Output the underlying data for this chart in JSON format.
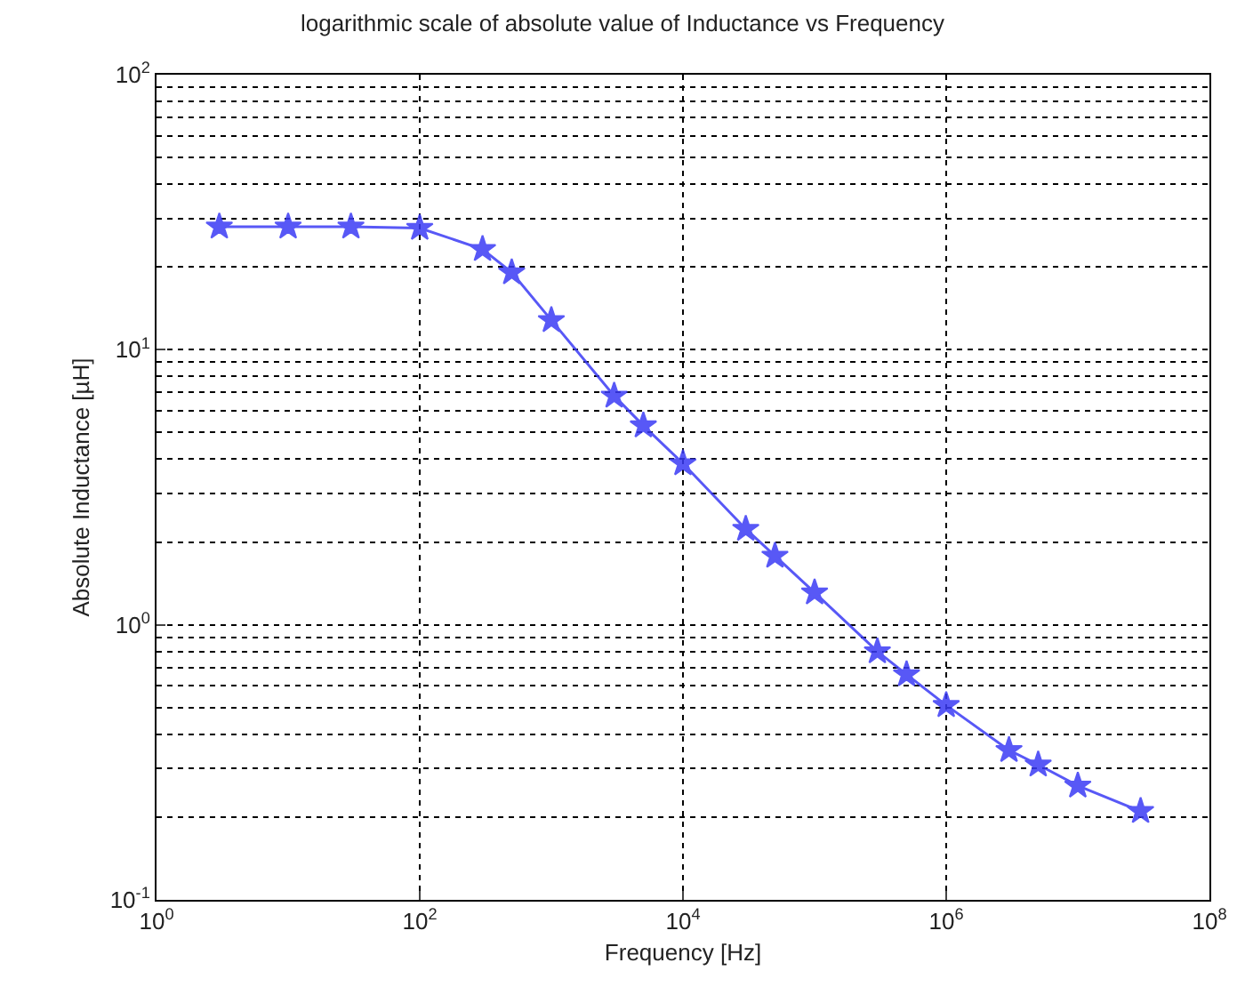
{
  "chart_data": {
    "type": "line",
    "title": "logarithmic scale of absolute value of Inductance vs Frequency",
    "xlabel": "Frequency [Hz]",
    "ylabel": "Absolute Inductance [µH]",
    "x": [
      3,
      10,
      30,
      100,
      300,
      500,
      1000,
      3000,
      5000,
      10000,
      30000,
      50000,
      100000,
      300000,
      500000,
      1000000,
      3000000,
      5000000,
      10000000,
      30000000
    ],
    "series": [
      {
        "color": "#3b3bf5",
        "values": [
          28,
          28,
          28,
          27.7,
          23.2,
          19.1,
          12.8,
          6.8,
          5.3,
          3.86,
          2.23,
          1.78,
          1.31,
          0.8,
          0.66,
          0.51,
          0.35,
          0.31,
          0.26,
          0.21
        ]
      }
    ],
    "log": "xy",
    "xlim": [
      1,
      100000000
    ],
    "ylim": [
      0.1,
      100
    ],
    "xticks": [
      {
        "value": 1,
        "label": "10$^{0}$"
      },
      {
        "value": 100,
        "label": "10$^{2}$"
      },
      {
        "value": 10000,
        "label": "10$^{4}$"
      },
      {
        "value": 1000000,
        "label": "10$^{6}$"
      },
      {
        "value": 100000000,
        "label": "10$^{8}$"
      }
    ],
    "yticks": [
      {
        "value": 0.1,
        "label": "10$^{-1}$"
      },
      {
        "value": 1,
        "label": "10$^{0}$"
      },
      {
        "value": 10,
        "label": "10$^{1}$"
      },
      {
        "value": 100,
        "label": "10$^{2}$"
      }
    ],
    "grid": true,
    "marker": "star",
    "line_style": "solid"
  }
}
